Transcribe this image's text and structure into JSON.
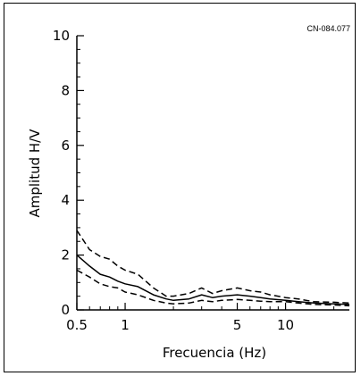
{
  "chart_data": {
    "type": "line",
    "station_id": "CN-084.077",
    "xlabel": "Frecuencia (Hz)",
    "ylabel": "Amplitud H/V",
    "x_scale": "log",
    "xlim": [
      0.5,
      25
    ],
    "ylim": [
      0,
      10
    ],
    "x_ticks": [
      {
        "value": 0.5,
        "label": "0.5"
      },
      {
        "value": 1,
        "label": "1"
      },
      {
        "value": 5,
        "label": "5"
      },
      {
        "value": 10,
        "label": "10"
      }
    ],
    "y_ticks": [
      {
        "value": 0,
        "label": "0"
      },
      {
        "value": 2,
        "label": "2"
      },
      {
        "value": 4,
        "label": "4"
      },
      {
        "value": 6,
        "label": "6"
      },
      {
        "value": 8,
        "label": "8"
      },
      {
        "value": 10,
        "label": "10"
      }
    ],
    "grid": false,
    "x": [
      0.5,
      0.6,
      0.7,
      0.8,
      0.9,
      1.0,
      1.2,
      1.5,
      1.8,
      2.0,
      2.5,
      3.0,
      3.5,
      4.0,
      5.0,
      6.0,
      7.0,
      8.0,
      10.0,
      12.0,
      15.0,
      20.0,
      25.0
    ],
    "series": [
      {
        "style": "solid",
        "values": [
          2.0,
          1.6,
          1.3,
          1.2,
          1.05,
          0.95,
          0.85,
          0.55,
          0.4,
          0.35,
          0.4,
          0.55,
          0.45,
          0.5,
          0.55,
          0.5,
          0.45,
          0.4,
          0.35,
          0.3,
          0.25,
          0.22,
          0.2
        ]
      },
      {
        "style": "dashed",
        "values": [
          2.9,
          2.2,
          1.95,
          1.85,
          1.6,
          1.45,
          1.3,
          0.8,
          0.5,
          0.5,
          0.6,
          0.8,
          0.6,
          0.7,
          0.8,
          0.7,
          0.65,
          0.55,
          0.45,
          0.4,
          0.3,
          0.28,
          0.25
        ]
      },
      {
        "style": "dashed",
        "values": [
          1.45,
          1.2,
          0.95,
          0.85,
          0.8,
          0.65,
          0.55,
          0.35,
          0.25,
          0.22,
          0.25,
          0.35,
          0.3,
          0.35,
          0.38,
          0.35,
          0.32,
          0.3,
          0.3,
          0.25,
          0.2,
          0.18,
          0.15
        ]
      }
    ]
  }
}
